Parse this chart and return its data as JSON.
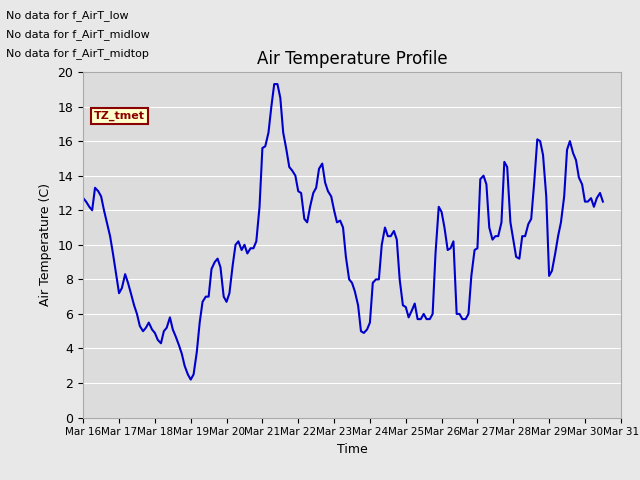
{
  "title": "Air Temperature Profile",
  "xlabel": "Time",
  "ylabel": "Air Temperature (C)",
  "line_color": "#0000cc",
  "line_width": 1.5,
  "ylim": [
    0,
    20
  ],
  "background_color": "#e8e8e8",
  "plot_bg_color": "#dcdcdc",
  "annotations": [
    "No data for f_AirT_low",
    "No data for f_AirT_midlow",
    "No data for f_AirT_midtop"
  ],
  "tz_label": "TZ_tmet",
  "x_tick_labels": [
    "Mar 16",
    "Mar 17",
    "Mar 18",
    "Mar 19",
    "Mar 20",
    "Mar 21",
    "Mar 22",
    "Mar 23",
    "Mar 24",
    "Mar 25",
    "Mar 26",
    "Mar 27",
    "Mar 28",
    "Mar 29",
    "Mar 30",
    "Mar 31"
  ],
  "x_values": [
    0.0,
    0.08,
    0.17,
    0.25,
    0.33,
    0.42,
    0.5,
    0.58,
    0.67,
    0.75,
    0.83,
    0.92,
    1.0,
    1.08,
    1.17,
    1.25,
    1.33,
    1.42,
    1.5,
    1.58,
    1.67,
    1.75,
    1.83,
    1.92,
    2.0,
    2.08,
    2.17,
    2.25,
    2.33,
    2.42,
    2.5,
    2.58,
    2.67,
    2.75,
    2.83,
    2.92,
    3.0,
    3.08,
    3.17,
    3.25,
    3.33,
    3.42,
    3.5,
    3.58,
    3.67,
    3.75,
    3.83,
    3.92,
    4.0,
    4.08,
    4.17,
    4.25,
    4.33,
    4.42,
    4.5,
    4.58,
    4.67,
    4.75,
    4.83,
    4.92,
    5.0,
    5.08,
    5.17,
    5.25,
    5.33,
    5.42,
    5.5,
    5.58,
    5.67,
    5.75,
    5.83,
    5.92,
    6.0,
    6.08,
    6.17,
    6.25,
    6.33,
    6.42,
    6.5,
    6.58,
    6.67,
    6.75,
    6.83,
    6.92,
    7.0,
    7.08,
    7.17,
    7.25,
    7.33,
    7.42,
    7.5,
    7.58,
    7.67,
    7.75,
    7.83,
    7.92,
    8.0,
    8.08,
    8.17,
    8.25,
    8.33,
    8.42,
    8.5,
    8.58,
    8.67,
    8.75,
    8.83,
    8.92,
    9.0,
    9.08,
    9.17,
    9.25,
    9.33,
    9.42,
    9.5,
    9.58,
    9.67,
    9.75,
    9.83,
    9.92,
    10.0,
    10.08,
    10.17,
    10.25,
    10.33,
    10.42,
    10.5,
    10.58,
    10.67,
    10.75,
    10.83,
    10.92,
    11.0,
    11.08,
    11.17,
    11.25,
    11.33,
    11.42,
    11.5,
    11.58,
    11.67,
    11.75,
    11.83,
    11.92,
    12.0,
    12.08,
    12.17,
    12.25,
    12.33,
    12.42,
    12.5,
    12.58,
    12.67,
    12.75,
    12.83,
    12.92,
    13.0,
    13.08,
    13.17,
    13.25,
    13.33,
    13.42,
    13.5,
    13.58,
    13.67,
    13.75,
    13.83,
    13.92,
    14.0,
    14.08,
    14.17,
    14.25,
    14.33,
    14.42,
    14.5
  ],
  "y_values": [
    12.7,
    12.5,
    12.2,
    12.0,
    13.3,
    13.1,
    12.8,
    12.0,
    11.2,
    10.5,
    9.5,
    8.3,
    7.2,
    7.5,
    8.3,
    7.8,
    7.2,
    6.5,
    6.0,
    5.3,
    5.0,
    5.2,
    5.5,
    5.1,
    4.9,
    4.5,
    4.3,
    5.0,
    5.2,
    5.8,
    5.1,
    4.7,
    4.2,
    3.7,
    3.0,
    2.5,
    2.2,
    2.5,
    3.8,
    5.5,
    6.7,
    7.0,
    7.0,
    8.6,
    9.0,
    9.2,
    8.7,
    7.0,
    6.7,
    7.2,
    8.8,
    10.0,
    10.2,
    9.7,
    10.0,
    9.5,
    9.8,
    9.8,
    10.2,
    12.2,
    15.6,
    15.7,
    16.5,
    18.0,
    19.3,
    19.3,
    18.5,
    16.5,
    15.5,
    14.5,
    14.3,
    14.0,
    13.1,
    13.0,
    11.5,
    11.3,
    12.2,
    13.0,
    13.3,
    14.4,
    14.7,
    13.6,
    13.1,
    12.8,
    12.0,
    11.3,
    11.4,
    11.0,
    9.3,
    8.0,
    7.8,
    7.3,
    6.5,
    5.0,
    4.9,
    5.1,
    5.5,
    7.8,
    8.0,
    8.0,
    10.0,
    11.0,
    10.5,
    10.5,
    10.8,
    10.3,
    8.0,
    6.5,
    6.4,
    5.8,
    6.2,
    6.6,
    5.7,
    5.7,
    6.0,
    5.7,
    5.7,
    6.0,
    9.5,
    12.2,
    11.9,
    11.0,
    9.7,
    9.8,
    10.2,
    6.0,
    6.0,
    5.7,
    5.7,
    6.0,
    8.2,
    9.7,
    9.8,
    13.8,
    14.0,
    13.5,
    11.0,
    10.3,
    10.5,
    10.5,
    11.3,
    14.8,
    14.5,
    11.3,
    10.3,
    9.3,
    9.2,
    10.5,
    10.5,
    11.2,
    11.5,
    13.5,
    16.1,
    16.0,
    15.2,
    12.8,
    8.2,
    8.5,
    9.5,
    10.5,
    11.3,
    12.8,
    15.5,
    16.0,
    15.3,
    14.9,
    13.9,
    13.5,
    12.5,
    12.5,
    12.7,
    12.2,
    12.7,
    13.0,
    12.5
  ]
}
